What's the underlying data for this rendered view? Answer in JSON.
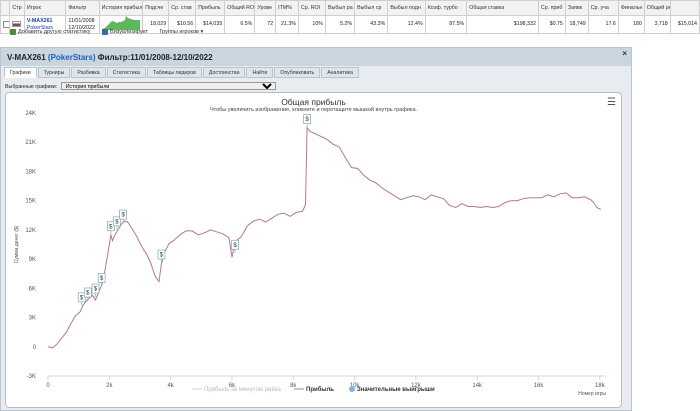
{
  "table": {
    "headers": [
      "Стр",
      "Игрок",
      "Фильтр",
      "История прибыл",
      "Подсче",
      "Ср. став",
      "Прибыль",
      "Общий RO",
      "Урове",
      "ITM%",
      "Ср. ROI",
      "Выбыл ра",
      "Выбыл ср",
      "Выбыл подн",
      "Коэф. турбо",
      "Общая ставка",
      "Ср. приб",
      "Заявк",
      "Ср. уча",
      "Финальн",
      "Общий рей"
    ],
    "row": {
      "player": "V-MAX261",
      "site": "PokerStars",
      "date_from": "11/01/2008",
      "date_to": "12/10/2022",
      "count": "18,029",
      "avg_stake": "$10.56",
      "profit": "$14,035",
      "total_roi": "6.5%",
      "level": "72",
      "itm": "21.3%",
      "avg_roi": "10%",
      "early": "5.2%",
      "mid": "43.3%",
      "late": "12.4%",
      "turbo": "87.5%",
      "total_stake": "$198,332",
      "avg_profit": "$0.75",
      "entries": "18,749",
      "avg_field": "17.6",
      "finals": "180",
      "col20": "3,718",
      "total_rake": "$15,014"
    }
  },
  "toolbar": {
    "add_stats": "Добавить другую статистику",
    "visualizer": "Визуализирует",
    "player_groups": "Группы игроков"
  },
  "window": {
    "title_prefix": "V-MAX261",
    "site": "(PokerStars)",
    "filter": "Фильтр:11/01/2008-12/10/2022",
    "tabs": [
      "Графики",
      "Турниры",
      "Разбивка",
      "Статистика",
      "Таблицы лидеров",
      "Достоинства",
      "Найти",
      "Опубликовать",
      "Аналитика"
    ],
    "filter_label": "Выбранные графики:",
    "filter_value": "История прибыли"
  },
  "chart_data": {
    "type": "line",
    "title": "Общая прибыль",
    "subtitle": "Чтобы увеличить изображение, кликните и перетащите мышкой внутрь графика.",
    "xlabel": "Номер игры",
    "ylabel": "Сумма денег ($)",
    "xlim": [
      0,
      18029
    ],
    "ylim": [
      -3000,
      24000
    ],
    "x_ticks": [
      "0",
      "2k",
      "4k",
      "6k",
      "8k",
      "10k",
      "12k",
      "14k",
      "16k",
      "18k"
    ],
    "y_ticks": [
      "-3K",
      "0",
      "3K",
      "6K",
      "9K",
      "12K",
      "15K",
      "18K",
      "21K",
      "24K"
    ],
    "grid": false,
    "legend_position": "bottom-center",
    "legend": [
      {
        "name": "Прибыль за минусом рейка",
        "color": "#cfcfcf"
      },
      {
        "name": "Прибыль",
        "color": "#b07b83"
      },
      {
        "name": "Значительные выигрыши",
        "color": "#7cb5ec"
      }
    ],
    "series": [
      {
        "name": "Прибыль",
        "color": "#b07b83",
        "x": [
          0,
          150,
          300,
          450,
          600,
          750,
          900,
          1050,
          1150,
          1250,
          1350,
          1450,
          1550,
          1650,
          1750,
          1850,
          1950,
          2050,
          2100,
          2200,
          2300,
          2400,
          2500,
          2600,
          2750,
          2900,
          3050,
          3200,
          3350,
          3500,
          3620,
          3700,
          3800,
          3950,
          4100,
          4300,
          4500,
          4700,
          4900,
          5100,
          5300,
          5500,
          5700,
          5900,
          6000,
          6100,
          6300,
          6500,
          6700,
          6900,
          7100,
          7300,
          7500,
          7700,
          7900,
          8100,
          8300,
          8400,
          8450,
          8550,
          8700,
          8900,
          9100,
          9300,
          9500,
          9700,
          9900,
          10100,
          10300,
          10500,
          10700,
          10900,
          11100,
          11300,
          11500,
          11700,
          11900,
          12100,
          12300,
          12500,
          12700,
          12900,
          13100,
          13300,
          13500,
          13700,
          13900,
          14100,
          14300,
          14500,
          14700,
          14900,
          15100,
          15300,
          15500,
          15700,
          15900,
          16100,
          16300,
          16500,
          16700,
          16900,
          17100,
          17300,
          17500,
          17700,
          17800,
          17900,
          18029
        ],
        "values": [
          0,
          -100,
          300,
          900,
          1500,
          2400,
          3200,
          3600,
          4300,
          4700,
          5000,
          5300,
          4800,
          5600,
          6300,
          7700,
          9500,
          11500,
          10900,
          11600,
          12100,
          12600,
          12900,
          12800,
          12100,
          11300,
          10300,
          9600,
          8600,
          7200,
          6700,
          8500,
          9700,
          10600,
          10900,
          11500,
          11900,
          11900,
          11500,
          11700,
          12000,
          11800,
          11600,
          11200,
          9200,
          10800,
          11300,
          12400,
          12900,
          13100,
          12800,
          13200,
          13600,
          13700,
          13400,
          13800,
          13900,
          14600,
          22500,
          22100,
          21900,
          21600,
          21300,
          20800,
          20500,
          19400,
          18400,
          18300,
          17600,
          17100,
          16800,
          16300,
          15900,
          15500,
          15100,
          15300,
          15500,
          15400,
          15100,
          15600,
          15400,
          15200,
          14500,
          14300,
          14700,
          14400,
          14400,
          14300,
          14400,
          14300,
          14400,
          14800,
          15000,
          15000,
          15200,
          15300,
          15300,
          15300,
          15600,
          15400,
          15700,
          15800,
          15300,
          15300,
          15400,
          15100,
          14800,
          14300,
          14100
        ]
      }
    ],
    "markers": [
      {
        "x": 1100,
        "y": 4200,
        "label": "$"
      },
      {
        "x": 1300,
        "y": 4700,
        "label": "$"
      },
      {
        "x": 1550,
        "y": 5100,
        "label": "$"
      },
      {
        "x": 1750,
        "y": 6200,
        "label": "$"
      },
      {
        "x": 2050,
        "y": 11500,
        "label": "$"
      },
      {
        "x": 2250,
        "y": 12000,
        "label": "$"
      },
      {
        "x": 2450,
        "y": 12700,
        "label": "$"
      },
      {
        "x": 3700,
        "y": 8600,
        "label": "$"
      },
      {
        "x": 6100,
        "y": 9600,
        "label": "$"
      },
      {
        "x": 8450,
        "y": 22500,
        "label": "$"
      }
    ]
  }
}
